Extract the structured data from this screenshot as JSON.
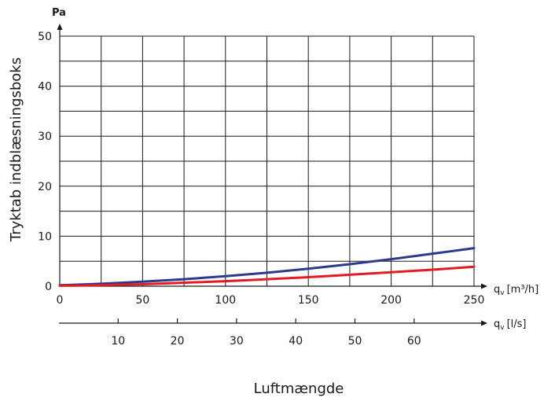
{
  "chart_data": {
    "type": "line",
    "title": "",
    "xlabel": "Luftmængde",
    "ylabel": "Tryktab indblæsningsboks",
    "y_unit": "Pa",
    "x_unit": "q",
    "x_unit_sub": "v",
    "x_unit_suffix": "[m³/h]",
    "x2_unit": "q",
    "x2_unit_sub": "v",
    "x2_unit_suffix": "[l/s]",
    "xlim": [
      0,
      250
    ],
    "ylim": [
      0,
      50
    ],
    "x_ticks": [
      0,
      50,
      100,
      150,
      200,
      250
    ],
    "y_ticks": [
      0,
      10,
      20,
      30,
      40,
      50
    ],
    "x2_ticks": [
      10,
      20,
      30,
      40,
      50,
      60
    ],
    "grid": true,
    "series": [
      {
        "color": "#2b3a8f",
        "x": [
          0,
          25,
          50,
          75,
          100,
          125,
          150,
          175,
          200,
          225,
          250
        ],
        "y": [
          0.2,
          0.5,
          0.9,
          1.4,
          2.0,
          2.7,
          3.5,
          4.4,
          5.4,
          6.5,
          7.6
        ]
      },
      {
        "color": "#e31b23",
        "x": [
          0,
          25,
          50,
          75,
          100,
          125,
          150,
          175,
          200,
          225,
          250
        ],
        "y": [
          0.1,
          0.2,
          0.4,
          0.7,
          1.0,
          1.4,
          1.8,
          2.3,
          2.8,
          3.3,
          3.9
        ]
      }
    ]
  }
}
